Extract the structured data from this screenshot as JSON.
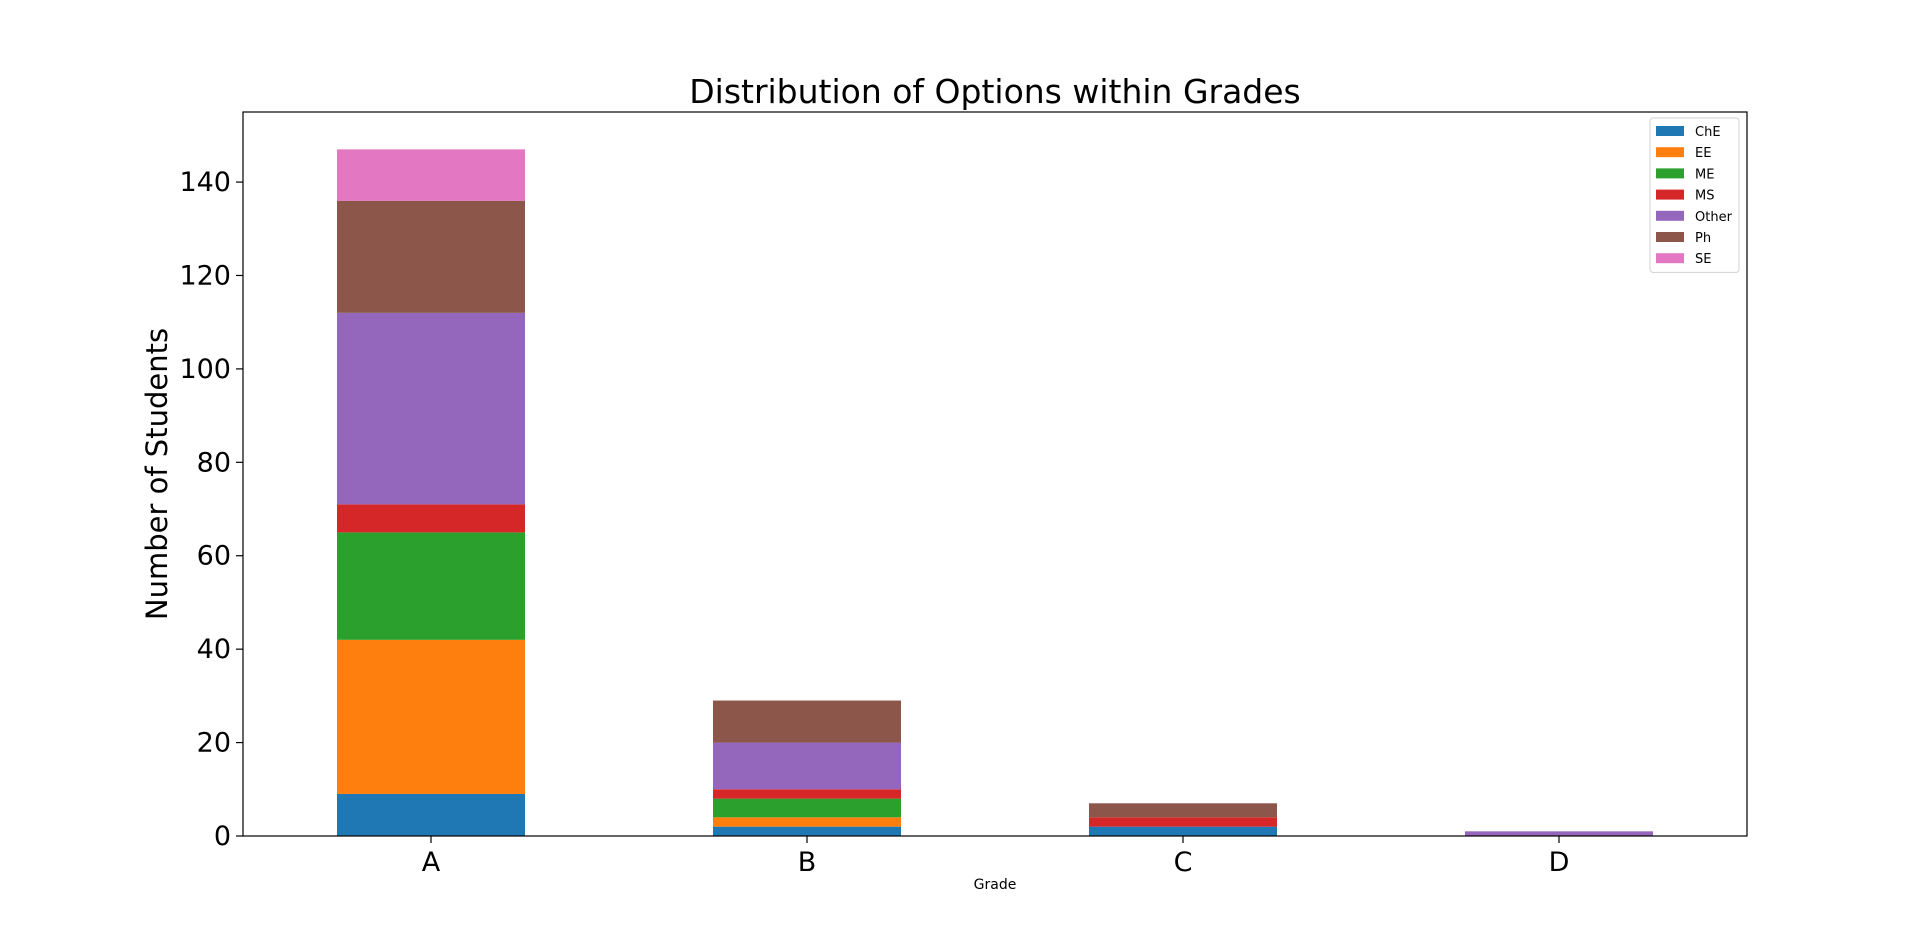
{
  "chart_data": {
    "type": "bar",
    "stacked": true,
    "title": "Distribution of Options within Grades",
    "xlabel": "Grade",
    "ylabel": "Number of Students",
    "categories": [
      "A",
      "B",
      "C",
      "D"
    ],
    "ylim": [
      0,
      155
    ],
    "yticks": [
      0,
      20,
      40,
      60,
      80,
      100,
      120,
      140
    ],
    "grid": false,
    "legend_position": "top-right",
    "series": [
      {
        "name": "ChE",
        "color": "#1f77b4",
        "values": [
          9,
          2,
          2,
          0
        ]
      },
      {
        "name": "EE",
        "color": "#ff7f0e",
        "values": [
          33,
          2,
          0,
          0
        ]
      },
      {
        "name": "ME",
        "color": "#2ca02c",
        "values": [
          23,
          4,
          0,
          0
        ]
      },
      {
        "name": "MS",
        "color": "#d62728",
        "values": [
          6,
          2,
          2,
          0
        ]
      },
      {
        "name": "Other",
        "color": "#9467bd",
        "values": [
          41,
          10,
          0,
          1
        ]
      },
      {
        "name": "Ph",
        "color": "#8c564b",
        "values": [
          24,
          9,
          3,
          0
        ]
      },
      {
        "name": "SE",
        "color": "#e377c2",
        "values": [
          11,
          0,
          0,
          0
        ]
      }
    ]
  }
}
